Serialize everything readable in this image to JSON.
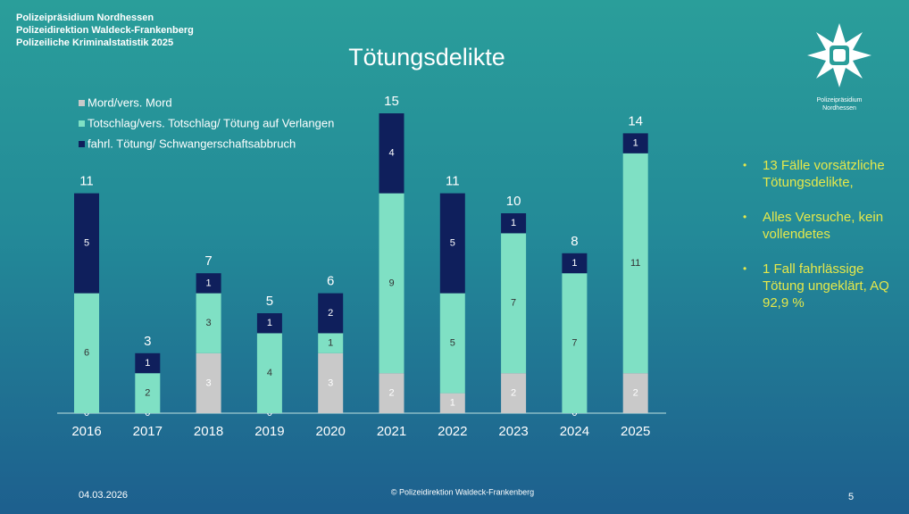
{
  "header": {
    "lines": [
      "Polizeipräsidium Nordhessen",
      "Polizeidirektion Waldeck-Frankenberg",
      "Polizeiliche Kriminalstatistik 2025"
    ]
  },
  "logo_text": [
    "Polizeipräsidium",
    "Nordhessen"
  ],
  "chart_data": {
    "type": "stacked_bar",
    "title": "Tötungsdelikte",
    "categories": [
      "2016",
      "2017",
      "2018",
      "2019",
      "2020",
      "2021",
      "2022",
      "2023",
      "2024",
      "2025"
    ],
    "series": [
      {
        "name": "Mord/vers. Mord",
        "color": "#c9c9c9",
        "label_color": "#ffffff",
        "values": [
          0,
          0,
          3,
          0,
          3,
          2,
          1,
          2,
          0,
          2
        ]
      },
      {
        "name": "Totschlag/vers. Totschlag/ Tötung auf Verlangen",
        "color": "#7fe0c4",
        "label_color": "#333333",
        "values": [
          6,
          2,
          3,
          4,
          1,
          9,
          5,
          7,
          7,
          11
        ]
      },
      {
        "name": "fahrl. Tötung/ Schwangerschaftsabbruch",
        "color": "#0f1f5c",
        "label_color": "#ffffff",
        "values": [
          5,
          1,
          1,
          1,
          2,
          4,
          5,
          1,
          1,
          1
        ]
      }
    ],
    "totals": [
      11,
      3,
      7,
      5,
      6,
      15,
      11,
      10,
      8,
      14
    ]
  },
  "notes": [
    "13 Fälle vorsätzliche Tötungsdelikte,",
    "Alles Versuche, kein vollendetes",
    "1 Fall fahrlässige Tötung ungeklärt, AQ 92,9 %"
  ],
  "footer": {
    "date": "04.03.2026",
    "copyright": "© Polizeidirektion Waldeck-Frankenberg",
    "page": "5"
  }
}
